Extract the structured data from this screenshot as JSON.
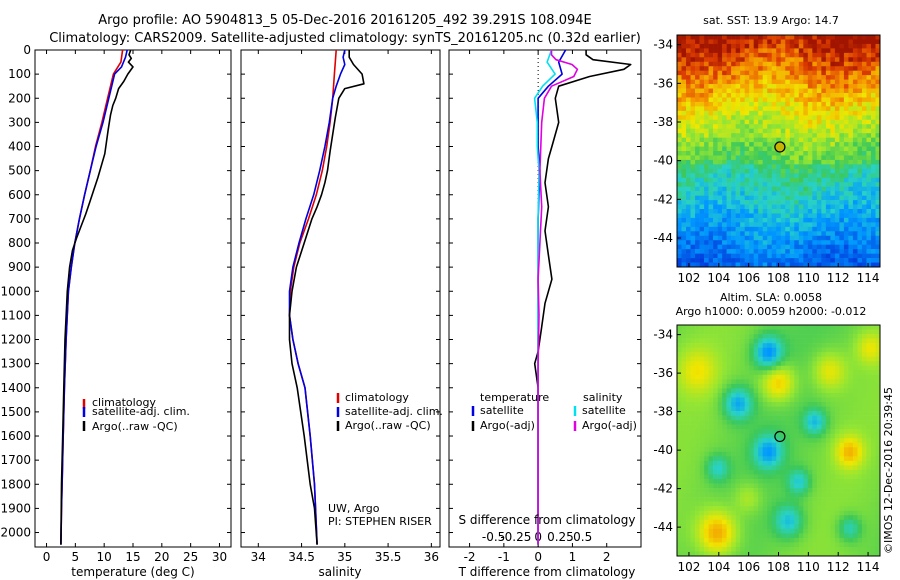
{
  "title": {
    "line1": "Argo profile: AO 5904813_5 05-Dec-2016 20161205_492 39.291S 108.094E",
    "line2": "Climatology: CARS2009. Satellite-adjusted climatology: synTS_20161205.nc (0.32d earlier)"
  },
  "colors": {
    "climatology": "#e00000",
    "satellite": "#0000e0",
    "argo": "#000000",
    "salinity_sat": "#00e0f0",
    "salinity_argo": "#e000e0"
  },
  "chart_data": [
    {
      "id": "temperature",
      "type": "line",
      "xlabel": "temperature (deg C)",
      "xlim": [
        -2,
        32
      ],
      "xticks": [
        0,
        5,
        10,
        15,
        20,
        25,
        30
      ],
      "ylim": [
        2060,
        0
      ],
      "yticks": [
        0,
        100,
        200,
        300,
        400,
        500,
        600,
        700,
        800,
        900,
        1000,
        1100,
        1200,
        1300,
        1400,
        1500,
        1600,
        1700,
        1800,
        1900,
        2000
      ],
      "legend": [
        "climatology",
        "satellite-adj. clim.",
        "Argo(..raw -QC)"
      ],
      "series": [
        {
          "name": "climatology",
          "color": "#e00000",
          "x": [
            13.2,
            12.9,
            11.6,
            10.6,
            9.6,
            8.5,
            7.6,
            6.6,
            5.7,
            4.9,
            4.3,
            3.8,
            3.4,
            3.1,
            2.9,
            2.7,
            2.6,
            2.5
          ],
          "y": [
            0,
            50,
            100,
            200,
            300,
            400,
            500,
            600,
            700,
            800,
            900,
            1000,
            1200,
            1400,
            1600,
            1800,
            1900,
            2050
          ]
        },
        {
          "name": "satellite-adj. clim.",
          "color": "#0000e0",
          "x": [
            14.0,
            13.7,
            13.0,
            11.8,
            10.8,
            9.8,
            8.6,
            7.6,
            6.6,
            5.7,
            4.9,
            4.3,
            3.8,
            3.4,
            3.1,
            2.9,
            2.7,
            2.6,
            2.5
          ],
          "y": [
            0,
            30,
            70,
            100,
            200,
            300,
            400,
            500,
            600,
            700,
            800,
            900,
            1000,
            1200,
            1400,
            1600,
            1800,
            1900,
            2050
          ]
        },
        {
          "name": "Argo(..raw -QC)",
          "color": "#000000",
          "x": [
            14.6,
            14.3,
            14.7,
            14.2,
            15.0,
            14.1,
            13.4,
            12.5,
            12.0,
            11.5,
            11.1,
            10.7,
            10.4,
            10.1,
            9.5,
            8.9,
            8.2,
            7.5,
            6.8,
            6.0,
            5.2,
            4.5,
            4.0,
            3.6,
            3.2,
            3.0,
            2.8,
            2.6,
            2.5
          ],
          "y": [
            0,
            20,
            35,
            50,
            70,
            100,
            130,
            160,
            200,
            230,
            270,
            330,
            380,
            430,
            480,
            530,
            580,
            630,
            680,
            730,
            780,
            830,
            900,
            1000,
            1200,
            1400,
            1600,
            1800,
            2050
          ]
        }
      ]
    },
    {
      "id": "salinity",
      "type": "line",
      "xlabel": "salinity",
      "xlim": [
        33.8,
        36.1
      ],
      "xticks": [
        34,
        34.5,
        35,
        35.5,
        36
      ],
      "ylim": [
        2060,
        0
      ],
      "legend": [
        "climatology",
        "satellite-adj. clim.",
        "Argo(..raw -QC)"
      ],
      "series": [
        {
          "name": "climatology",
          "color": "#e00000",
          "x": [
            34.9,
            34.89,
            34.88,
            34.86,
            34.83,
            34.79,
            34.74,
            34.67,
            34.58,
            34.48,
            34.41,
            34.37,
            34.36,
            34.4,
            34.46,
            34.54,
            34.6,
            34.65,
            34.68
          ],
          "y": [
            0,
            50,
            100,
            200,
            300,
            400,
            500,
            600,
            700,
            800,
            900,
            1000,
            1100,
            1200,
            1300,
            1400,
            1600,
            1800,
            2050
          ]
        },
        {
          "name": "satellite-adj. clim.",
          "color": "#0000e0",
          "x": [
            35.0,
            34.98,
            35.0,
            34.95,
            34.9,
            34.86,
            34.82,
            34.77,
            34.71,
            34.64,
            34.55,
            34.47,
            34.4,
            34.36,
            34.36,
            34.4,
            34.46,
            34.54,
            34.6,
            34.65,
            34.68
          ],
          "y": [
            0,
            30,
            60,
            100,
            150,
            200,
            300,
            400,
            500,
            600,
            700,
            800,
            900,
            1000,
            1100,
            1200,
            1300,
            1400,
            1600,
            1800,
            2050
          ]
        },
        {
          "name": "Argo(..raw -QC)",
          "color": "#000000",
          "x": [
            35.05,
            35.05,
            35.1,
            35.2,
            35.22,
            35.0,
            34.93,
            34.89,
            34.86,
            34.83,
            34.8,
            34.77,
            34.73,
            34.68,
            34.62,
            34.53,
            34.44,
            34.39,
            34.36,
            34.36,
            34.39,
            34.45,
            34.53,
            34.6,
            34.65,
            34.68
          ],
          "y": [
            0,
            30,
            60,
            100,
            140,
            160,
            200,
            280,
            350,
            420,
            500,
            550,
            600,
            650,
            700,
            800,
            900,
            1000,
            1100,
            1200,
            1300,
            1400,
            1600,
            1800,
            1900,
            2050
          ]
        }
      ]
    },
    {
      "id": "difference",
      "type": "line",
      "xlabel": "T difference from climatology",
      "xlabel_top": "S difference from climatology",
      "xlim": [
        -2.6,
        3.0
      ],
      "xticks": [
        -2,
        -1,
        0,
        1,
        2
      ],
      "xticks_top": [
        -0.5,
        -0.25,
        0,
        0.25,
        0.5
      ],
      "xtick_labels_top": [
        "-0.5",
        "-0.25",
        "0",
        "0.25",
        "0.5"
      ],
      "ylim": [
        2060,
        0
      ],
      "legend_left_title": "temperature",
      "legend_right_title": "salinity",
      "legend": [
        "satellite",
        "Argo(-adj)",
        "satellite",
        "Argo(-adj)"
      ],
      "series": [
        {
          "name": "T satellite",
          "color": "#0000e0",
          "x": [
            0.8,
            0.6,
            0.7,
            0.3,
            0.0,
            0.0,
            0.0,
            0.05,
            0.0,
            0.0,
            0.0,
            0.0,
            0.0,
            0.0,
            0.0
          ],
          "y": [
            0,
            50,
            100,
            150,
            200,
            300,
            400,
            500,
            700,
            900,
            1100,
            1300,
            1500,
            1700,
            2050
          ]
        },
        {
          "name": "T Argo(-adj)",
          "color": "#000000",
          "x": [
            1.4,
            1.4,
            1.6,
            2.7,
            2.5,
            1.5,
            0.6,
            0.5,
            0.6,
            0.4,
            0.3,
            0.2,
            0.3,
            0.2,
            0.3,
            0.4,
            0.2,
            0.1,
            0.0,
            -0.1,
            0.0,
            0.0,
            0.0
          ],
          "y": [
            0,
            20,
            40,
            60,
            80,
            110,
            150,
            200,
            300,
            400,
            450,
            550,
            650,
            750,
            850,
            950,
            1050,
            1150,
            1250,
            1300,
            1400,
            1700,
            2050
          ]
        },
        {
          "name": "S satellite",
          "color": "#00e0f0",
          "x": [
            0.15,
            0.1,
            0.19,
            0.05,
            -0.04,
            -0.01,
            -0.01,
            0.01,
            0.0,
            0.0,
            0.0,
            0.0,
            0.0,
            0.0
          ],
          "y": [
            0,
            50,
            100,
            150,
            200,
            300,
            400,
            500,
            700,
            900,
            1100,
            1300,
            1600,
            2050
          ]
        },
        {
          "name": "S Argo(-adj)",
          "color": "#e000e0",
          "x": [
            0.15,
            0.15,
            0.2,
            0.38,
            0.44,
            0.4,
            0.15,
            0.07,
            0.04,
            0.03,
            0.02,
            0.04,
            0.02,
            0.0,
            0.01,
            0.0,
            0.0,
            0.0
          ],
          "y": [
            0,
            20,
            40,
            60,
            80,
            110,
            150,
            200,
            300,
            400,
            500,
            650,
            800,
            950,
            1100,
            1300,
            1600,
            2050
          ]
        }
      ]
    },
    {
      "id": "sst_map",
      "type": "heatmap",
      "title": "sat. SST: 13.9 Argo: 14.7",
      "xlim": [
        101.2,
        114.8
      ],
      "ylim": [
        -45.5,
        -33.5
      ],
      "xticks": [
        102,
        104,
        106,
        108,
        110,
        112,
        114
      ],
      "yticks": [
        -34,
        -36,
        -38,
        -40,
        -42,
        -44
      ],
      "marker": {
        "lon": 108.094,
        "lat": -39.291
      }
    },
    {
      "id": "sla_map",
      "type": "heatmap",
      "title_line1": "Altim. SLA: 0.0058",
      "title_line2": "Argo h1000: 0.0059 h2000: -0.012",
      "xlim": [
        101.2,
        114.8
      ],
      "ylim": [
        -45.5,
        -33.5
      ],
      "xticks": [
        102,
        104,
        106,
        108,
        110,
        112,
        114
      ],
      "yticks": [
        -34,
        -36,
        -38,
        -40,
        -42,
        -44
      ],
      "marker": {
        "lon": 108.094,
        "lat": -39.291
      }
    }
  ],
  "side_note": "©IMOS 12-Dec-2016 20:39:45",
  "attribution": {
    "line1": "UW, Argo",
    "line2": "PI: STEPHEN RISER"
  }
}
